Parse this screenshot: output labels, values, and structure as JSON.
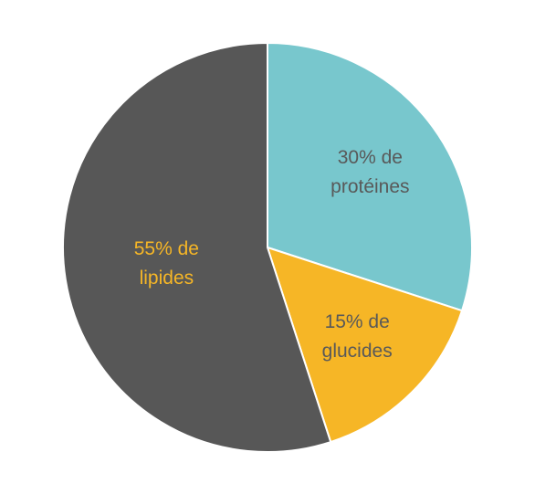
{
  "chart_data": {
    "type": "pie",
    "title": "",
    "slices": [
      {
        "value": 30,
        "label_line1": "30% de",
        "label_line2": "protéines",
        "color": "#78C7CD",
        "label_color": "#595959"
      },
      {
        "value": 15,
        "label_line1": "15% de",
        "label_line2": "glucides",
        "color": "#F6B626",
        "label_color": "#595959"
      },
      {
        "value": 55,
        "label_line1": "55% de",
        "label_line2": "lipides",
        "color": "#575757",
        "label_color": "#F6B626"
      }
    ],
    "start_angle": "12 o'clock",
    "direction": "clockwise",
    "legend": "none"
  }
}
